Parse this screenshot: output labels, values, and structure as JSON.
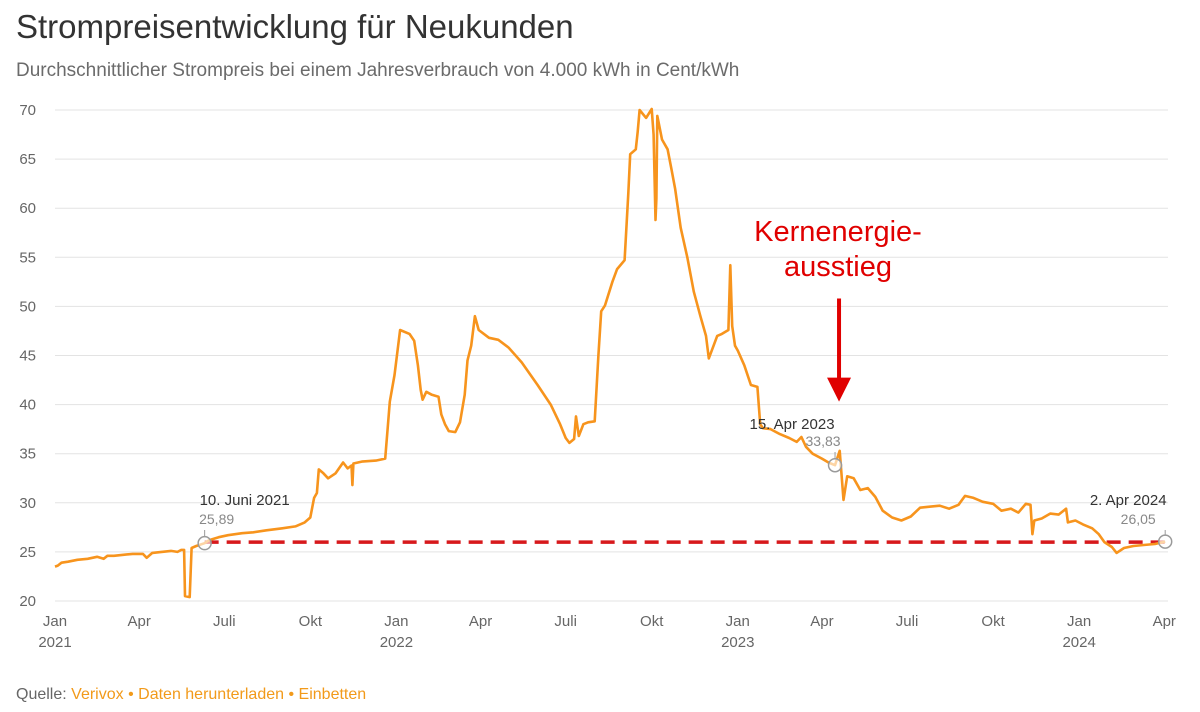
{
  "header": {
    "title": "Strompreisentwicklung für Neukunden",
    "subtitle": "Durchschnittlicher Strompreis bei einem Jahresverbrauch von 4.000 kWh in Cent/kWh"
  },
  "footer": {
    "source_label": "Quelle:",
    "links": [
      "Verivox",
      "Daten herunterladen",
      "Einbetten"
    ],
    "separator": "•"
  },
  "colors": {
    "line": "#f7941d",
    "grid": "#e3e3e3",
    "reference_line": "#d7191c",
    "annotation": "#e00000",
    "marker": "#9a9a9a",
    "axis_text": "#666666",
    "footer_link": "#f29a1a"
  },
  "chart_data": {
    "type": "line",
    "title": "Strompreisentwicklung für Neukunden",
    "subtitle": "Durchschnittlicher Strompreis bei einem Jahresverbrauch von 4.000 kWh in Cent/kWh",
    "xlabel": "",
    "ylabel": "",
    "ylim": [
      20,
      70
    ],
    "xlim": [
      "2021-01-01",
      "2024-04-05"
    ],
    "y_ticks": [
      20,
      25,
      30,
      35,
      40,
      45,
      50,
      55,
      60,
      65,
      70
    ],
    "x_ticks": [
      {
        "date": "2021-01-01",
        "label": "Jan",
        "year": "2021"
      },
      {
        "date": "2021-04-01",
        "label": "Apr"
      },
      {
        "date": "2021-07-01",
        "label": "Juli"
      },
      {
        "date": "2021-10-01",
        "label": "Okt"
      },
      {
        "date": "2022-01-01",
        "label": "Jan",
        "year": "2022"
      },
      {
        "date": "2022-04-01",
        "label": "Apr"
      },
      {
        "date": "2022-07-01",
        "label": "Juli"
      },
      {
        "date": "2022-10-01",
        "label": "Okt"
      },
      {
        "date": "2023-01-01",
        "label": "Jan",
        "year": "2023"
      },
      {
        "date": "2023-04-01",
        "label": "Apr"
      },
      {
        "date": "2023-07-01",
        "label": "Juli"
      },
      {
        "date": "2023-10-01",
        "label": "Okt"
      },
      {
        "date": "2024-01-01",
        "label": "Jan",
        "year": "2024"
      },
      {
        "date": "2024-04-01",
        "label": "Apr"
      }
    ],
    "grid": true,
    "legend": "none",
    "series": [
      {
        "points": [
          [
            "2021-01-01",
            23.5
          ],
          [
            "2021-01-04",
            23.6
          ],
          [
            "2021-01-08",
            23.9
          ],
          [
            "2021-01-15",
            24.0
          ],
          [
            "2021-01-25",
            24.2
          ],
          [
            "2021-02-05",
            24.3
          ],
          [
            "2021-02-15",
            24.5
          ],
          [
            "2021-02-22",
            24.3
          ],
          [
            "2021-02-26",
            24.6
          ],
          [
            "2021-03-05",
            24.6
          ],
          [
            "2021-03-15",
            24.7
          ],
          [
            "2021-03-25",
            24.8
          ],
          [
            "2021-04-05",
            24.8
          ],
          [
            "2021-04-09",
            24.4
          ],
          [
            "2021-04-15",
            24.9
          ],
          [
            "2021-04-25",
            25.0
          ],
          [
            "2021-05-05",
            25.1
          ],
          [
            "2021-05-12",
            25.0
          ],
          [
            "2021-05-16",
            25.2
          ],
          [
            "2021-05-19",
            25.2
          ],
          [
            "2021-05-20",
            20.5
          ],
          [
            "2021-05-25",
            20.4
          ],
          [
            "2021-05-27",
            25.4
          ],
          [
            "2021-06-01",
            25.6
          ],
          [
            "2021-06-10",
            25.89
          ],
          [
            "2021-06-15",
            26.2
          ],
          [
            "2021-06-25",
            26.5
          ],
          [
            "2021-07-05",
            26.7
          ],
          [
            "2021-07-20",
            26.9
          ],
          [
            "2021-08-01",
            27.0
          ],
          [
            "2021-08-15",
            27.2
          ],
          [
            "2021-09-01",
            27.4
          ],
          [
            "2021-09-15",
            27.6
          ],
          [
            "2021-09-25",
            28.0
          ],
          [
            "2021-10-01",
            28.5
          ],
          [
            "2021-10-05",
            30.5
          ],
          [
            "2021-10-08",
            31.0
          ],
          [
            "2021-10-10",
            33.4
          ],
          [
            "2021-10-15",
            33.0
          ],
          [
            "2021-10-20",
            32.5
          ],
          [
            "2021-10-28",
            33.0
          ],
          [
            "2021-11-05",
            34.1
          ],
          [
            "2021-11-10",
            33.5
          ],
          [
            "2021-11-14",
            33.8
          ],
          [
            "2021-11-15",
            31.8
          ],
          [
            "2021-11-16",
            34.0
          ],
          [
            "2021-11-25",
            34.2
          ],
          [
            "2021-12-10",
            34.3
          ],
          [
            "2021-12-20",
            34.5
          ],
          [
            "2021-12-23",
            38.0
          ],
          [
            "2021-12-25",
            40.3
          ],
          [
            "2021-12-30",
            43.0
          ],
          [
            "2022-01-05",
            47.6
          ],
          [
            "2022-01-15",
            47.2
          ],
          [
            "2022-01-20",
            46.5
          ],
          [
            "2022-01-24",
            44.0
          ],
          [
            "2022-01-27",
            41.5
          ],
          [
            "2022-01-29",
            40.5
          ],
          [
            "2022-02-02",
            41.3
          ],
          [
            "2022-02-08",
            41.0
          ],
          [
            "2022-02-15",
            40.8
          ],
          [
            "2022-02-18",
            39.0
          ],
          [
            "2022-02-22",
            38.0
          ],
          [
            "2022-02-26",
            37.3
          ],
          [
            "2022-03-05",
            37.2
          ],
          [
            "2022-03-10",
            38.2
          ],
          [
            "2022-03-15",
            41.0
          ],
          [
            "2022-03-18",
            44.5
          ],
          [
            "2022-03-22",
            46.0
          ],
          [
            "2022-03-26",
            49.0
          ],
          [
            "2022-03-30",
            47.6
          ],
          [
            "2022-04-10",
            46.8
          ],
          [
            "2022-04-20",
            46.6
          ],
          [
            "2022-05-01",
            45.8
          ],
          [
            "2022-05-15",
            44.3
          ],
          [
            "2022-06-01",
            42.0
          ],
          [
            "2022-06-15",
            40.0
          ],
          [
            "2022-06-25",
            38.0
          ],
          [
            "2022-07-01",
            36.6
          ],
          [
            "2022-07-05",
            36.1
          ],
          [
            "2022-07-10",
            36.5
          ],
          [
            "2022-07-12",
            38.8
          ],
          [
            "2022-07-15",
            36.8
          ],
          [
            "2022-07-20",
            38.0
          ],
          [
            "2022-07-25",
            38.2
          ],
          [
            "2022-08-01",
            38.3
          ],
          [
            "2022-08-05",
            45.0
          ],
          [
            "2022-08-08",
            49.5
          ],
          [
            "2022-08-12",
            50.1
          ],
          [
            "2022-08-20",
            52.5
          ],
          [
            "2022-08-25",
            53.8
          ],
          [
            "2022-09-02",
            54.7
          ],
          [
            "2022-09-06",
            61.5
          ],
          [
            "2022-09-08",
            65.5
          ],
          [
            "2022-09-14",
            66.0
          ],
          [
            "2022-09-16",
            67.8
          ],
          [
            "2022-09-18",
            70.0
          ],
          [
            "2022-09-25",
            69.2
          ],
          [
            "2022-10-01",
            70.1
          ],
          [
            "2022-10-03",
            67.5
          ],
          [
            "2022-10-05",
            58.8
          ],
          [
            "2022-10-06",
            61.0
          ],
          [
            "2022-10-07",
            69.4
          ],
          [
            "2022-10-12",
            67.0
          ],
          [
            "2022-10-18",
            66.0
          ],
          [
            "2022-10-22",
            64.0
          ],
          [
            "2022-10-26",
            62.0
          ],
          [
            "2022-11-01",
            58.0
          ],
          [
            "2022-11-08",
            55.0
          ],
          [
            "2022-11-15",
            51.5
          ],
          [
            "2022-11-22",
            49.0
          ],
          [
            "2022-11-28",
            47.0
          ],
          [
            "2022-12-01",
            44.7
          ],
          [
            "2022-12-05",
            45.7
          ],
          [
            "2022-12-10",
            47.0
          ],
          [
            "2022-12-15",
            47.2
          ],
          [
            "2022-12-22",
            47.6
          ],
          [
            "2022-12-24",
            54.2
          ],
          [
            "2022-12-26",
            48.0
          ],
          [
            "2022-12-29",
            46.0
          ],
          [
            "2023-01-01",
            45.5
          ],
          [
            "2023-01-08",
            44.0
          ],
          [
            "2023-01-15",
            42.0
          ],
          [
            "2023-01-22",
            41.8
          ],
          [
            "2023-01-25",
            38.0
          ],
          [
            "2023-01-28",
            37.6
          ],
          [
            "2023-02-05",
            37.5
          ],
          [
            "2023-02-15",
            37.0
          ],
          [
            "2023-02-25",
            36.6
          ],
          [
            "2023-03-05",
            36.2
          ],
          [
            "2023-03-10",
            36.7
          ],
          [
            "2023-03-15",
            35.7
          ],
          [
            "2023-03-22",
            35.0
          ],
          [
            "2023-04-01",
            34.5
          ],
          [
            "2023-04-08",
            34.1
          ],
          [
            "2023-04-15",
            33.83
          ],
          [
            "2023-04-20",
            35.3
          ],
          [
            "2023-04-24",
            30.3
          ],
          [
            "2023-04-28",
            32.7
          ],
          [
            "2023-05-05",
            32.5
          ],
          [
            "2023-05-12",
            31.3
          ],
          [
            "2023-05-20",
            31.5
          ],
          [
            "2023-05-28",
            30.6
          ],
          [
            "2023-06-05",
            29.2
          ],
          [
            "2023-06-15",
            28.5
          ],
          [
            "2023-06-25",
            28.2
          ],
          [
            "2023-07-05",
            28.6
          ],
          [
            "2023-07-15",
            29.5
          ],
          [
            "2023-07-25",
            29.6
          ],
          [
            "2023-08-05",
            29.7
          ],
          [
            "2023-08-15",
            29.4
          ],
          [
            "2023-08-25",
            29.8
          ],
          [
            "2023-09-01",
            30.7
          ],
          [
            "2023-09-10",
            30.5
          ],
          [
            "2023-09-20",
            30.1
          ],
          [
            "2023-10-01",
            29.9
          ],
          [
            "2023-10-10",
            29.2
          ],
          [
            "2023-10-20",
            29.4
          ],
          [
            "2023-10-28",
            29.0
          ],
          [
            "2023-11-05",
            29.9
          ],
          [
            "2023-11-10",
            29.8
          ],
          [
            "2023-11-12",
            26.8
          ],
          [
            "2023-11-14",
            28.2
          ],
          [
            "2023-11-22",
            28.4
          ],
          [
            "2023-12-01",
            28.9
          ],
          [
            "2023-12-10",
            28.8
          ],
          [
            "2023-12-18",
            29.4
          ],
          [
            "2023-12-20",
            28.0
          ],
          [
            "2023-12-28",
            28.2
          ],
          [
            "2024-01-05",
            27.8
          ],
          [
            "2024-01-15",
            27.4
          ],
          [
            "2024-01-22",
            26.8
          ],
          [
            "2024-01-28",
            26.0
          ],
          [
            "2024-02-05",
            25.5
          ],
          [
            "2024-02-10",
            24.9
          ],
          [
            "2024-02-18",
            25.4
          ],
          [
            "2024-02-28",
            25.6
          ],
          [
            "2024-03-10",
            25.7
          ],
          [
            "2024-03-22",
            25.8
          ],
          [
            "2024-04-02",
            26.05
          ]
        ]
      }
    ],
    "reference_line": {
      "y": 26.0,
      "from": "2021-06-10",
      "to": "2024-04-02",
      "style": "dashed"
    },
    "markers": [
      {
        "date": "2021-06-10",
        "value": 25.89,
        "label": "10. Juni 2021",
        "value_label": "25,89"
      },
      {
        "date": "2023-04-15",
        "value": 33.83,
        "label": "15. Apr 2023",
        "value_label": "33,83"
      },
      {
        "date": "2024-04-02",
        "value": 26.05,
        "label": "2. Apr 2024",
        "value_label": "26,05"
      }
    ],
    "annotation": {
      "lines": [
        "Kernenergie-",
        "ausstieg"
      ],
      "arrow_date": "2023-04-15",
      "arrow_top_value": 50.8,
      "arrow_tip_value": 40.3
    }
  }
}
